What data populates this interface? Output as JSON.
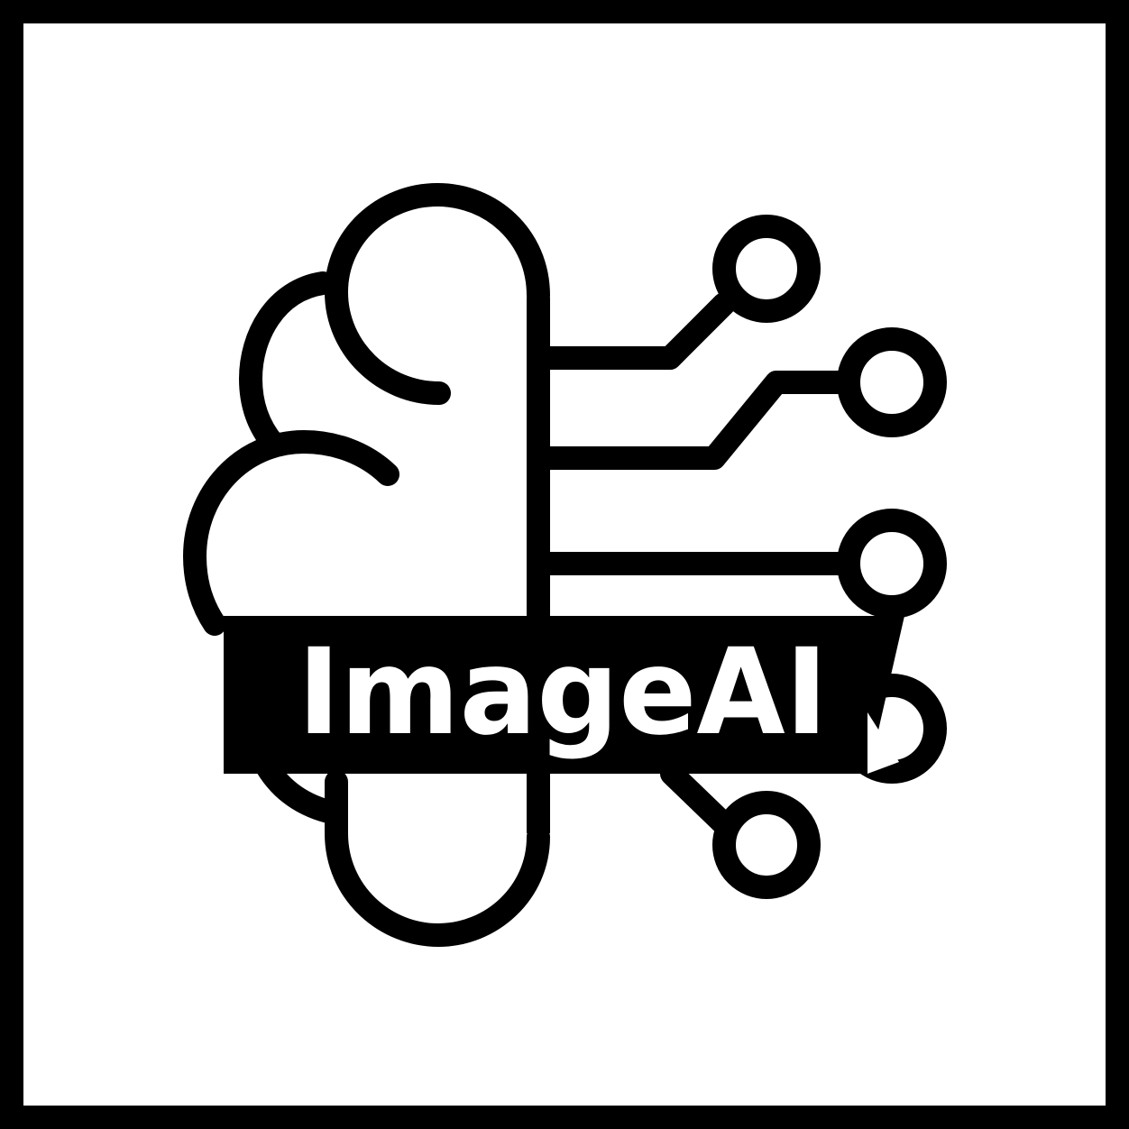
{
  "logo": {
    "wordmark": "ImageAI",
    "icon": "brain-circuit-icon",
    "colors": {
      "ink": "#000000",
      "paper": "#ffffff"
    }
  }
}
